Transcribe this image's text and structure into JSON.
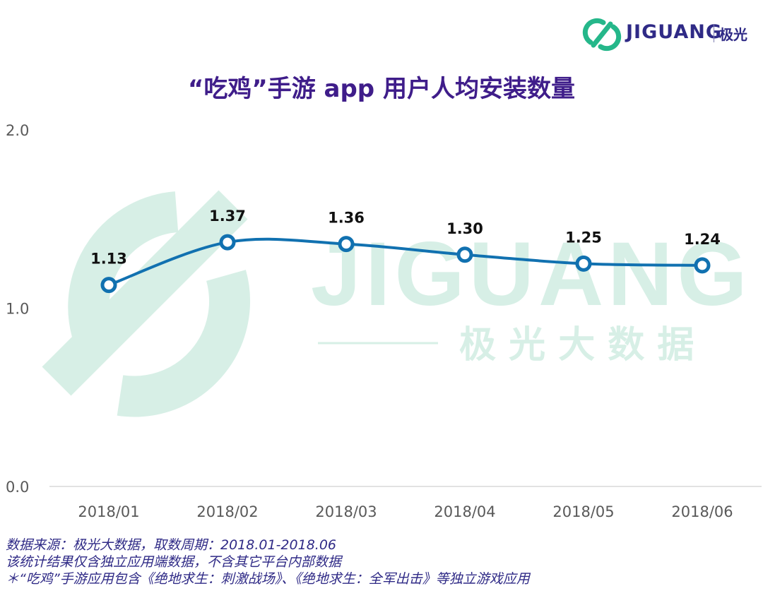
{
  "header": {
    "logo_text": "JIGUANG",
    "logo_cn": "极光"
  },
  "watermark": {
    "text": "JIGUANG",
    "subtext": "极 光 大 数 据"
  },
  "colors": {
    "line": "#1171b0",
    "title": "#3f1d8a",
    "watermark": "#d7efe6",
    "logo_green": "#25b78a",
    "note": "#2f2a86"
  },
  "chart_data": {
    "type": "line",
    "title": "“吃鸡”手游 app 用户人均安装数量",
    "categories": [
      "2018/01",
      "2018/02",
      "2018/03",
      "2018/04",
      "2018/05",
      "2018/06"
    ],
    "series": [
      {
        "values": [
          1.13,
          1.37,
          1.36,
          1.3,
          1.25,
          1.24
        ],
        "labels": [
          "1.13",
          "1.37",
          "1.36",
          "1.30",
          "1.25",
          "1.24"
        ]
      }
    ],
    "yticks": [
      "0.0",
      "1.0",
      "2.0"
    ],
    "ylim": [
      0,
      2
    ],
    "xlabel": "",
    "ylabel": "",
    "grid": false,
    "legend": "none"
  },
  "notes": [
    "数据来源：极光大数据，取数周期：2018.01-2018.06",
    "该统计结果仅含独立应用端数据，不含其它平台内部数据",
    "＊“吃鸡”手游应用包含《绝地求生：刺激战场》、《绝地求生：全军出击》等独立游戏应用"
  ]
}
